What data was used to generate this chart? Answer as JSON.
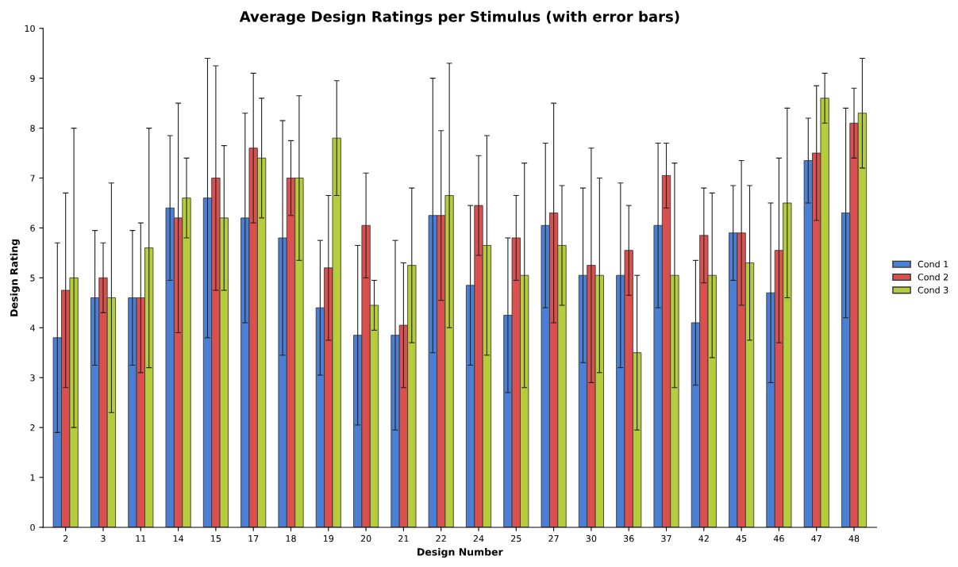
{
  "chart_data": {
    "type": "bar",
    "title": "Average Design Ratings per Stimulus (with error bars)",
    "xlabel": "Design Number",
    "ylabel": "Design Rating",
    "categories": [
      "2",
      "3",
      "11",
      "14",
      "15",
      "17",
      "18",
      "19",
      "20",
      "21",
      "22",
      "24",
      "25",
      "27",
      "30",
      "36",
      "37",
      "42",
      "45",
      "46",
      "47",
      "48"
    ],
    "series": [
      {
        "name": "Cond 1",
        "color": "#4a7fd4",
        "values": [
          3.8,
          4.6,
          4.6,
          6.4,
          6.6,
          6.2,
          5.8,
          4.4,
          3.85,
          3.85,
          6.25,
          4.85,
          4.25,
          6.05,
          5.05,
          5.05,
          6.05,
          4.1,
          5.9,
          4.7,
          7.35,
          6.3
        ],
        "errors": [
          1.9,
          1.35,
          1.35,
          1.45,
          2.8,
          2.1,
          2.35,
          1.35,
          1.8,
          1.9,
          2.75,
          1.6,
          1.55,
          1.65,
          1.75,
          1.85,
          1.65,
          1.25,
          0.95,
          1.8,
          0.85,
          2.1
        ]
      },
      {
        "name": "Cond 2",
        "color": "#d9504f",
        "values": [
          4.75,
          5.0,
          4.6,
          6.2,
          7.0,
          7.6,
          7.0,
          5.2,
          6.05,
          4.05,
          6.25,
          6.45,
          5.8,
          6.3,
          5.25,
          5.55,
          7.05,
          5.85,
          5.9,
          5.55,
          7.5,
          8.1
        ],
        "errors": [
          1.95,
          0.7,
          1.5,
          2.3,
          2.25,
          1.5,
          0.75,
          1.45,
          1.05,
          1.25,
          1.7,
          1.0,
          0.85,
          2.2,
          2.35,
          0.9,
          0.65,
          0.95,
          1.45,
          1.85,
          1.35,
          0.7
        ]
      },
      {
        "name": "Cond 3",
        "color": "#b5cc3c",
        "values": [
          5.0,
          4.6,
          5.6,
          6.6,
          6.2,
          7.4,
          7.0,
          7.8,
          4.45,
          5.25,
          6.65,
          5.65,
          5.05,
          5.65,
          5.05,
          3.5,
          5.05,
          5.05,
          5.3,
          6.5,
          8.6,
          8.3
        ],
        "errors": [
          3.0,
          2.3,
          2.4,
          0.8,
          1.45,
          1.2,
          1.65,
          1.15,
          0.5,
          1.55,
          2.65,
          2.2,
          2.25,
          1.2,
          1.95,
          1.55,
          2.25,
          1.65,
          1.55,
          1.9,
          0.5,
          1.1
        ]
      }
    ],
    "ylim": [
      0,
      10
    ],
    "yticks": [
      0,
      1,
      2,
      3,
      4,
      5,
      6,
      7,
      8,
      9,
      10
    ],
    "grid": false,
    "legend": "right"
  }
}
